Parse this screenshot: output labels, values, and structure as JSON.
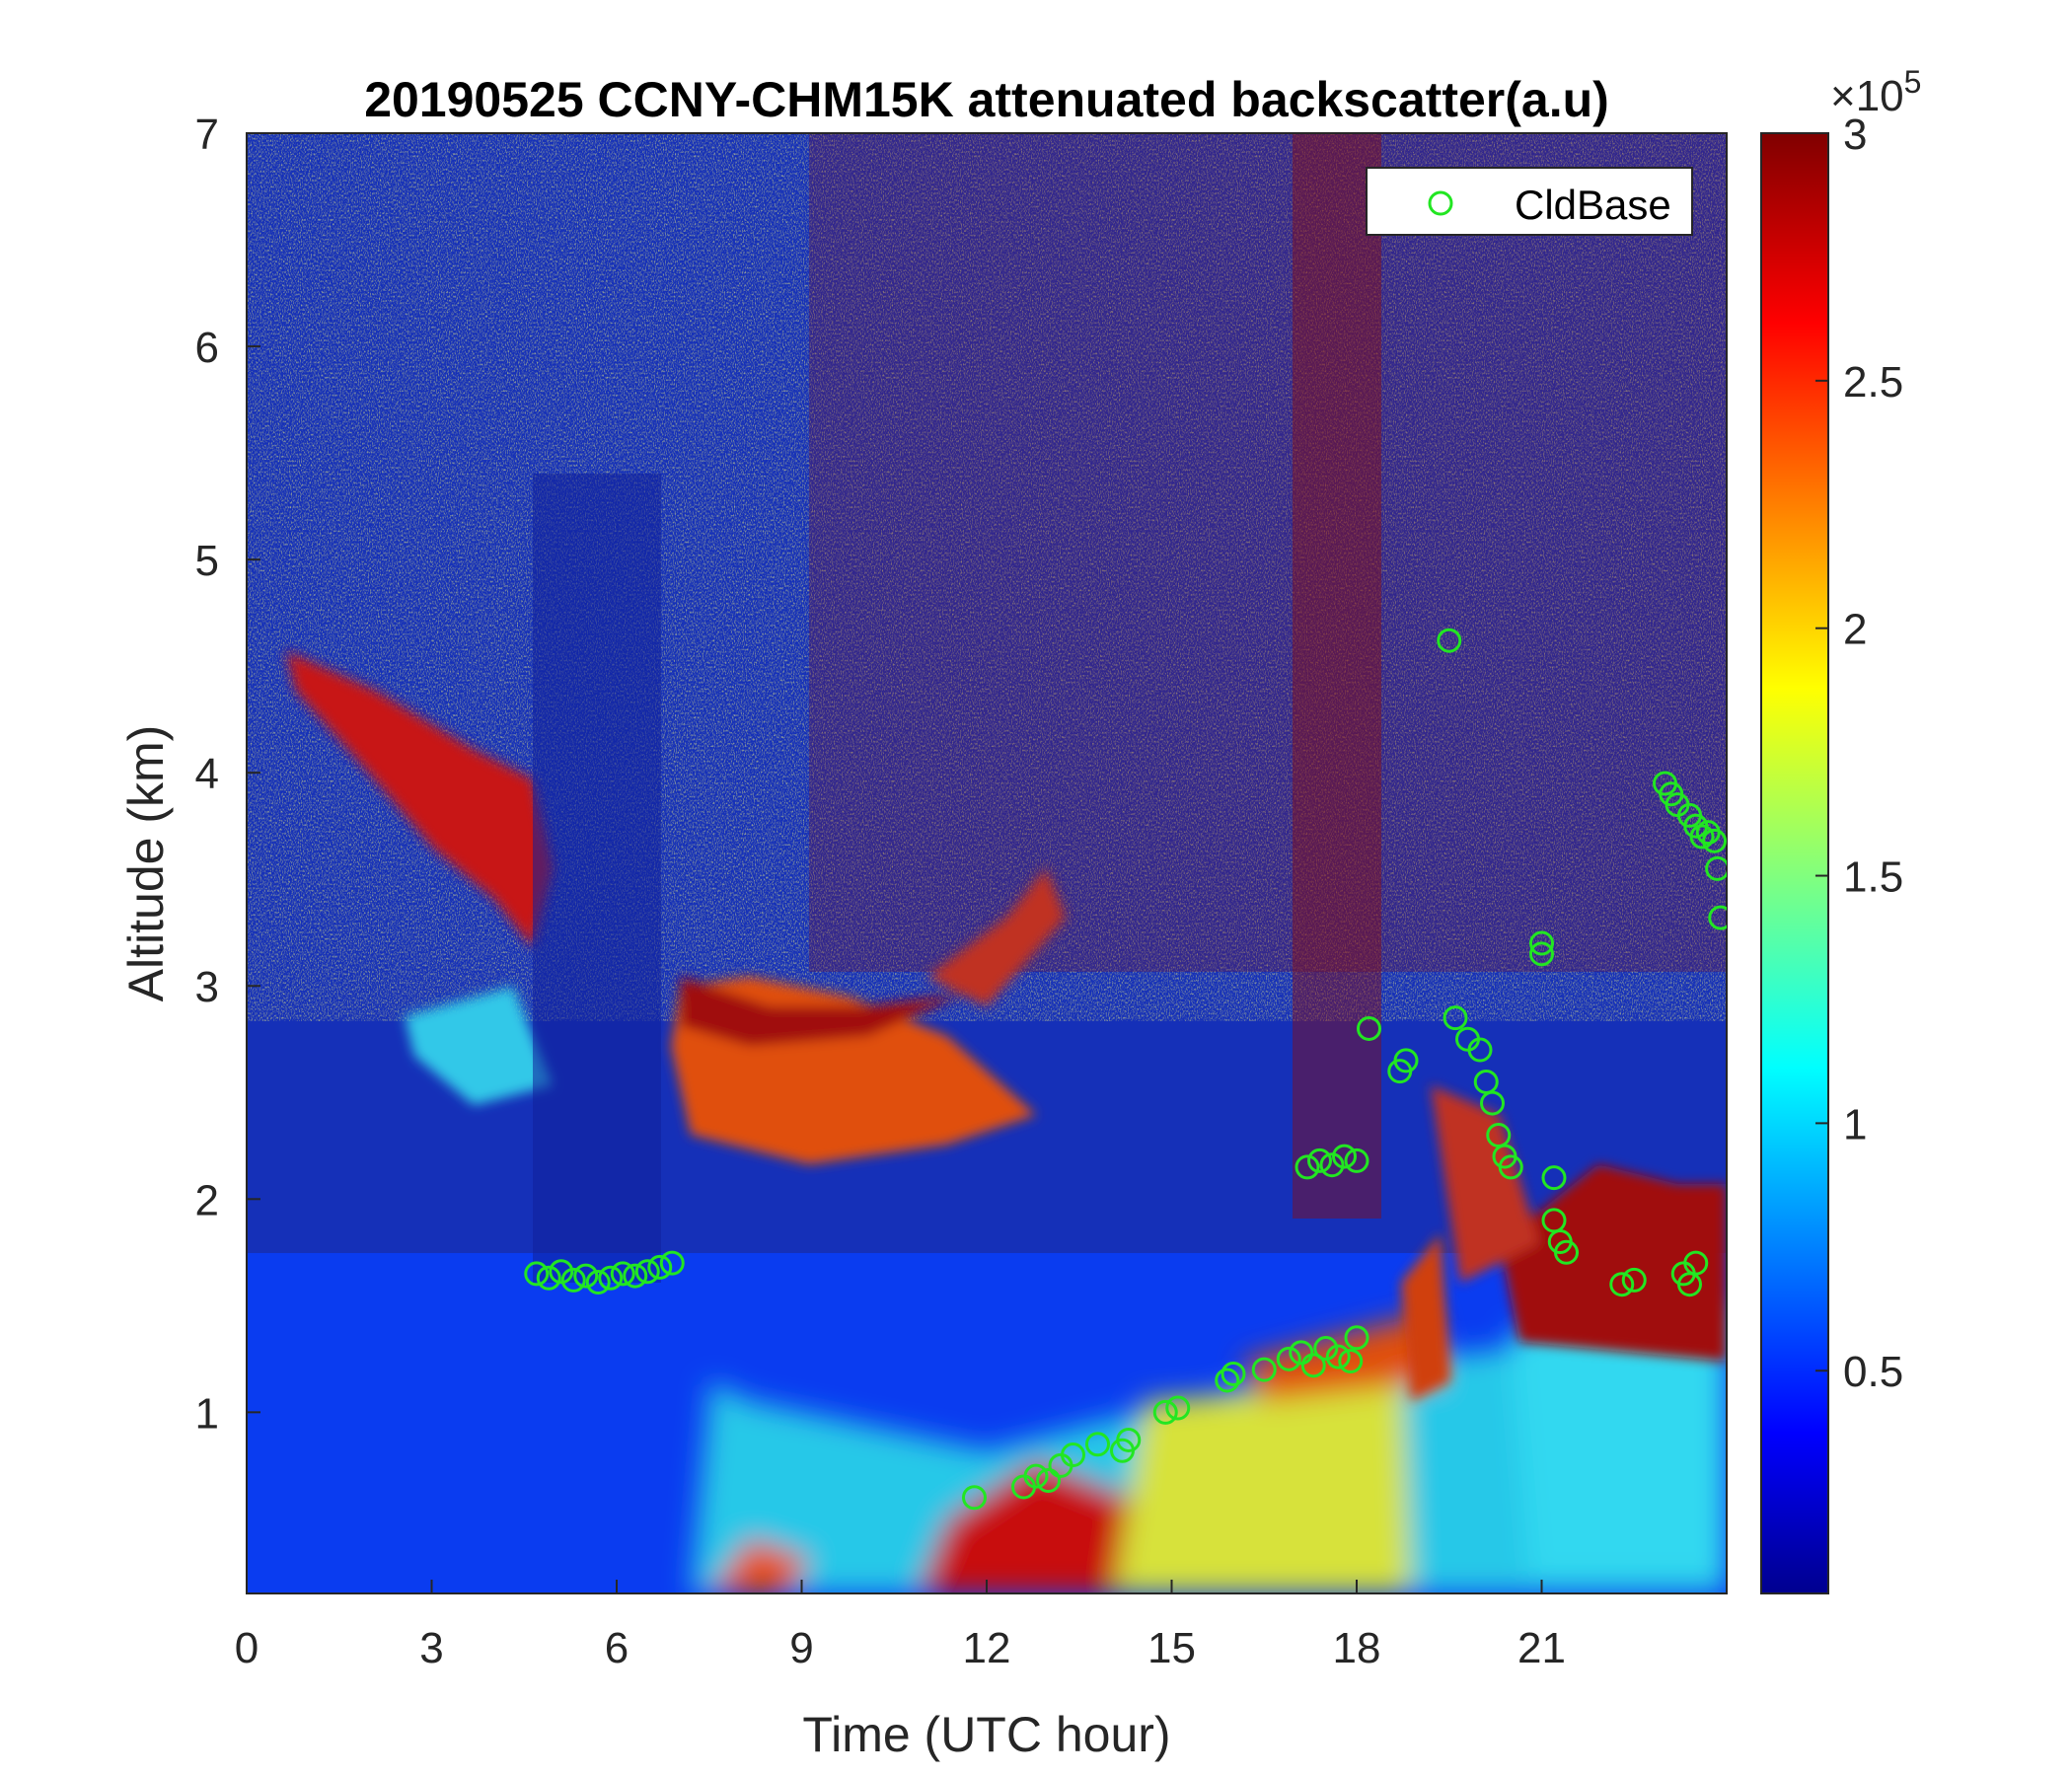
{
  "chart_data": {
    "type": "heatmap",
    "title": "20190525 CCNY-CHM15K attenuated backscatter(a.u)",
    "xlabel": "Time (UTC hour)",
    "ylabel": "Altitude (km)",
    "xlim": [
      0,
      24
    ],
    "ylim": [
      0.15,
      7
    ],
    "x_ticks": [
      0,
      3,
      6,
      9,
      12,
      15,
      18,
      21
    ],
    "y_ticks": [
      1,
      2,
      3,
      4,
      5,
      6,
      7
    ],
    "colorbar": {
      "colormap": "jet",
      "range": [
        0.05,
        3
      ],
      "ticks": [
        0.5,
        1,
        1.5,
        2,
        2.5,
        3
      ],
      "tick_labels": [
        "0.5",
        "1",
        "1.5",
        "2",
        "2.5",
        "3"
      ],
      "multiplier_base": "×10",
      "multiplier_exp": "5"
    },
    "legend": {
      "entries": [
        "CldBase"
      ],
      "placement": "top-right"
    },
    "colors": {
      "marker": "#22e622",
      "axis": "#262626"
    },
    "features": [
      {
        "name": "elevated aerosol layer (descending)",
        "x_range": [
          0.5,
          7
        ],
        "altitude_range": [
          2.9,
          4.6
        ],
        "level": "high"
      },
      {
        "name": "residual layer",
        "x_range": [
          7,
          11.5
        ],
        "altitude_range": [
          2.0,
          3.1
        ],
        "level": "high"
      },
      {
        "name": "boundary layer growth",
        "x_range": [
          11.5,
          24
        ],
        "altitude_range": [
          0.15,
          1.9
        ],
        "level": "high"
      },
      {
        "name": "afternoon cloud layer",
        "x_range": [
          20.5,
          24
        ],
        "altitude_range": [
          1.2,
          2.0
        ],
        "level": "saturated"
      }
    ],
    "series": [
      {
        "name": "CldBase",
        "marker": "circle",
        "points": [
          [
            4.7,
            1.65
          ],
          [
            4.9,
            1.63
          ],
          [
            5.1,
            1.66
          ],
          [
            5.3,
            1.62
          ],
          [
            5.5,
            1.64
          ],
          [
            5.7,
            1.61
          ],
          [
            5.9,
            1.63
          ],
          [
            6.1,
            1.65
          ],
          [
            6.3,
            1.64
          ],
          [
            6.5,
            1.66
          ],
          [
            6.7,
            1.68
          ],
          [
            6.9,
            1.7
          ],
          [
            11.8,
            0.6
          ],
          [
            12.6,
            0.65
          ],
          [
            12.8,
            0.7
          ],
          [
            13.0,
            0.68
          ],
          [
            13.2,
            0.75
          ],
          [
            13.4,
            0.8
          ],
          [
            13.8,
            0.85
          ],
          [
            14.2,
            0.82
          ],
          [
            14.3,
            0.87
          ],
          [
            14.9,
            1.0
          ],
          [
            15.1,
            1.02
          ],
          [
            15.9,
            1.15
          ],
          [
            16.0,
            1.18
          ],
          [
            16.5,
            1.2
          ],
          [
            16.9,
            1.25
          ],
          [
            17.1,
            1.28
          ],
          [
            17.3,
            1.22
          ],
          [
            17.5,
            1.3
          ],
          [
            17.7,
            1.26
          ],
          [
            17.9,
            1.24
          ],
          [
            18.0,
            1.35
          ],
          [
            17.2,
            2.15
          ],
          [
            17.4,
            2.18
          ],
          [
            17.6,
            2.16
          ],
          [
            17.8,
            2.2
          ],
          [
            18.0,
            2.18
          ],
          [
            18.2,
            2.8
          ],
          [
            18.7,
            2.6
          ],
          [
            18.8,
            2.65
          ],
          [
            19.5,
            4.62
          ],
          [
            19.6,
            2.85
          ],
          [
            19.8,
            2.75
          ],
          [
            20.0,
            2.7
          ],
          [
            20.1,
            2.55
          ],
          [
            20.2,
            2.45
          ],
          [
            20.3,
            2.3
          ],
          [
            20.4,
            2.2
          ],
          [
            20.5,
            2.15
          ],
          [
            21.0,
            3.2
          ],
          [
            21.0,
            3.15
          ],
          [
            21.2,
            2.1
          ],
          [
            21.2,
            1.9
          ],
          [
            21.3,
            1.8
          ],
          [
            21.4,
            1.75
          ],
          [
            22.3,
            1.6
          ],
          [
            22.5,
            1.62
          ],
          [
            23.3,
            1.65
          ],
          [
            23.4,
            1.6
          ],
          [
            23.5,
            1.7
          ],
          [
            23.0,
            3.95
          ],
          [
            23.1,
            3.9
          ],
          [
            23.2,
            3.85
          ],
          [
            23.4,
            3.8
          ],
          [
            23.5,
            3.75
          ],
          [
            23.6,
            3.7
          ],
          [
            23.7,
            3.72
          ],
          [
            23.8,
            3.68
          ],
          [
            23.85,
            3.55
          ],
          [
            23.9,
            3.32
          ]
        ]
      }
    ]
  }
}
